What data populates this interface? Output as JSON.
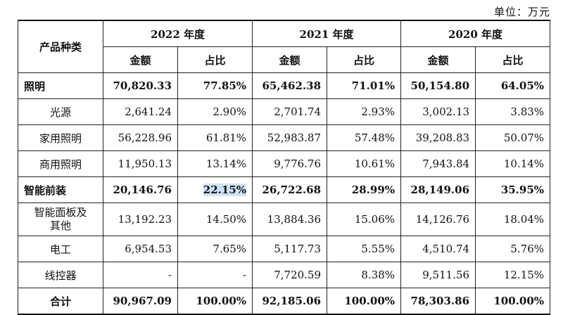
{
  "unit_label": "单位：万元",
  "header": {
    "category": "产品种类",
    "years": [
      "2022 年度",
      "2021 年度",
      "2020 年度"
    ],
    "amount": "金额",
    "ratio": "占比"
  },
  "rows": [
    {
      "name": "照明",
      "bold": true,
      "cells": [
        "70,820.33",
        "77.85%",
        "65,462.38",
        "71.01%",
        "50,154.80",
        "64.05%"
      ]
    },
    {
      "name": "光源",
      "bold": false,
      "cells": [
        "2,641.24",
        "2.90%",
        "2,701.74",
        "2.93%",
        "3,002.13",
        "3.83%"
      ]
    },
    {
      "name": "家用照明",
      "bold": false,
      "cells": [
        "56,228.96",
        "61.81%",
        "52,983.87",
        "57.48%",
        "39,208.83",
        "50.07%"
      ]
    },
    {
      "name": "商用照明",
      "bold": false,
      "cells": [
        "11,950.13",
        "13.14%",
        "9,776.76",
        "10.61%",
        "7,943.84",
        "10.14%"
      ]
    },
    {
      "name": "智能前装",
      "bold": true,
      "cells": [
        "20,146.76",
        "22.15%",
        "26,722.68",
        "28.99%",
        "28,149.06",
        "35.95%"
      ]
    },
    {
      "name": "智能面板及其他",
      "name_line1": "智能面板及",
      "name_line2": "其他",
      "bold": false,
      "cells": [
        "13,192.23",
        "14.50%",
        "13,884.36",
        "15.06%",
        "14,126.76",
        "18.04%"
      ]
    },
    {
      "name": "电工",
      "bold": false,
      "cells": [
        "6,954.53",
        "7.65%",
        "5,117.73",
        "5.55%",
        "4,510.74",
        "5.76%"
      ]
    },
    {
      "name": "线控器",
      "bold": false,
      "cells": [
        "-",
        "-",
        "7,720.59",
        "8.38%",
        "9,511.56",
        "12.15%"
      ]
    },
    {
      "name": "合计",
      "bold": true,
      "cells": [
        "90,967.09",
        "100.00%",
        "92,185.06",
        "100.00%",
        "78,303.86",
        "100.00%"
      ]
    }
  ],
  "highlight_color": "#cfe3f8"
}
